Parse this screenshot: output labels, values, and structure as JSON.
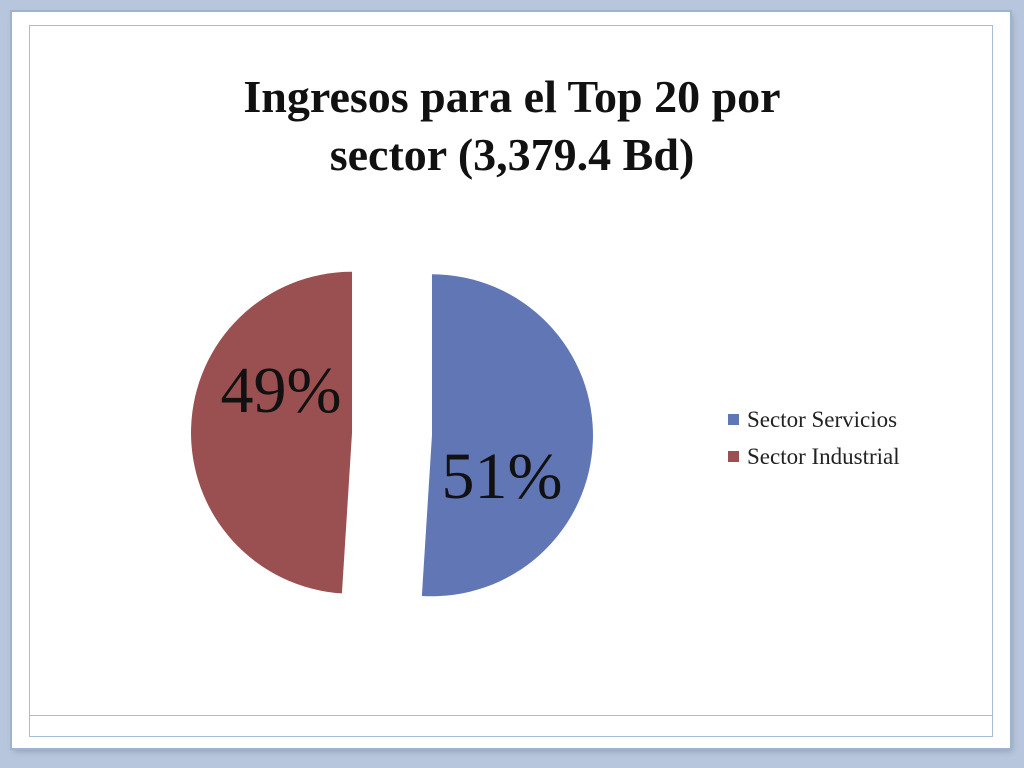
{
  "slide": {
    "title_line1": "Ingresos para el Top 20 por",
    "title_line2": "sector (3,379.4 Bd)"
  },
  "chart_data": {
    "type": "pie",
    "title": "Ingresos para el Top 20 por sector (3,379.4 Bd)",
    "slices": [
      {
        "label": "Sector Servicios",
        "value": 51,
        "display": "51%",
        "color": "#6176b5"
      },
      {
        "label": "Sector Industrial",
        "value": 49,
        "display": "49%",
        "color": "#9a4f50"
      }
    ],
    "exploded": true,
    "legend_position": "right"
  }
}
